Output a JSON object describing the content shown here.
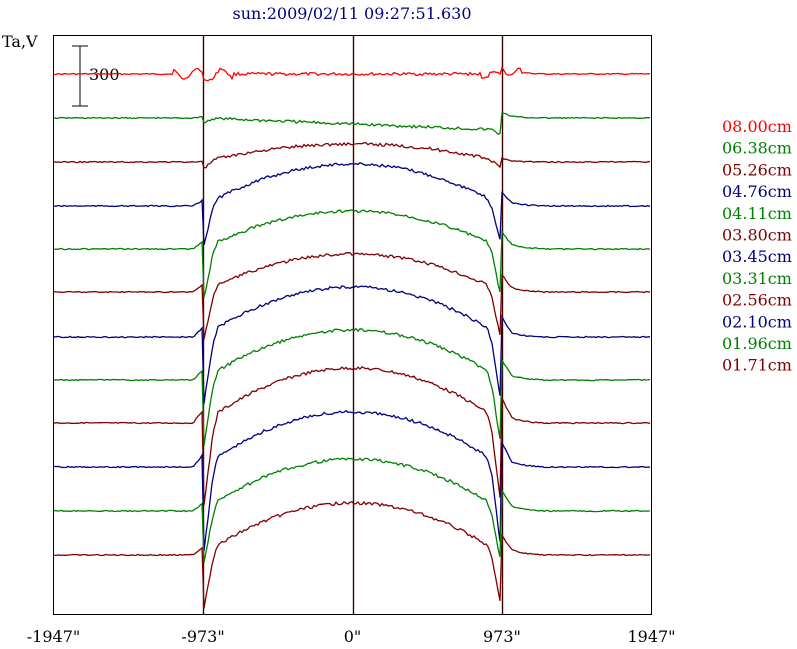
{
  "chart_data": {
    "type": "line",
    "title": "sun:2009/02/11 09:27:51.630",
    "ylabel": "Ta,V",
    "scale_bar_label": "300",
    "x_ticks": [
      "-1947\"",
      "-973\"",
      "0\"",
      "973\"",
      "1947\""
    ],
    "x_tick_values": [
      -1947,
      -973,
      0,
      973,
      1947
    ],
    "xlim": [
      -1947,
      1947
    ],
    "limb_positions": [
      -973,
      0,
      973
    ],
    "grid": false,
    "legend_position": "right",
    "trace_spacing_note": "",
    "series": [
      {
        "name": "08.00cm",
        "color": "#ff0000",
        "profile": "red"
      },
      {
        "name": "06.38cm",
        "color": "#008000",
        "profile": "edge"
      },
      {
        "name": "05.26cm",
        "color": "#800000",
        "profile": "dome1"
      },
      {
        "name": "04.76cm",
        "color": "#000080",
        "profile": "dome2"
      },
      {
        "name": "04.11cm",
        "color": "#008000",
        "profile": "dome3"
      },
      {
        "name": "03.80cm",
        "color": "#800000",
        "profile": "dome3"
      },
      {
        "name": "03.45cm",
        "color": "#000080",
        "profile": "dome4"
      },
      {
        "name": "03.31cm",
        "color": "#008000",
        "profile": "dome4"
      },
      {
        "name": "02.56cm",
        "color": "#800000",
        "profile": "dome5"
      },
      {
        "name": "02.10cm",
        "color": "#000080",
        "profile": "dome5"
      },
      {
        "name": "01.96cm",
        "color": "#008000",
        "profile": "dome6"
      },
      {
        "name": "01.71cm",
        "color": "#800000",
        "profile": "dome6"
      }
    ]
  }
}
